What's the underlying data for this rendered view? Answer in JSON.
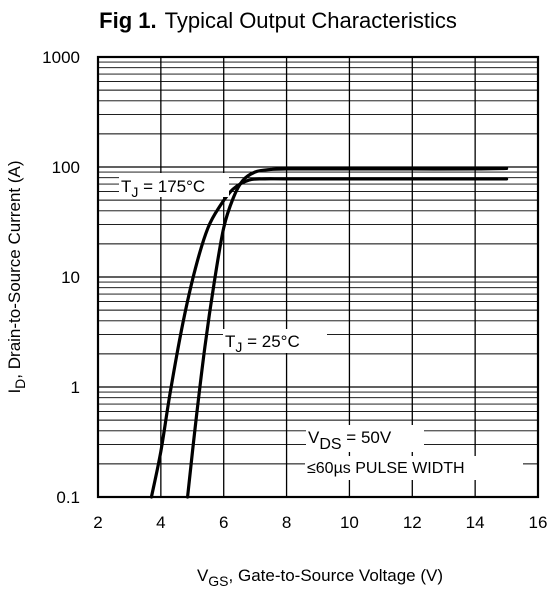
{
  "chart_data": {
    "type": "line",
    "title_prefix": "Fig 1.",
    "title": "Typical Output Characteristics",
    "xlabel": {
      "main": "V",
      "sub": "GS",
      "rest": ", Gate-to-Source Voltage (V)"
    },
    "ylabel": {
      "main": "I",
      "sub": "D",
      "rest": ", Drain-to-Source Current  (A)"
    },
    "x_scale": "linear",
    "y_scale": "log",
    "xlim": [
      2,
      16
    ],
    "ylim": [
      0.1,
      1000
    ],
    "x_ticks": [
      "2",
      "4",
      "6",
      "8",
      "10",
      "12",
      "14",
      "16"
    ],
    "y_ticks": [
      "0.1",
      "1",
      "10",
      "100",
      "1000"
    ],
    "grid": true,
    "series": [
      {
        "name": "TJ = 175°C",
        "label_main": "T",
        "label_sub": "J",
        "label_rest": " = 175°C",
        "x": [
          3.7,
          4.0,
          4.3,
          4.7,
          5.1,
          5.5,
          5.9,
          6.3,
          6.8,
          7.3,
          8.0,
          10.0,
          12.0,
          14.0,
          15.0
        ],
        "y": [
          0.1,
          0.26,
          0.9,
          3.8,
          12,
          28,
          45,
          63,
          76,
          78,
          78,
          78,
          78,
          78,
          78
        ]
      },
      {
        "name": "TJ = 25°C",
        "label_main": "T",
        "label_sub": "J",
        "label_rest": " = 25°C",
        "x": [
          4.85,
          5.1,
          5.4,
          5.7,
          6.0,
          6.3,
          6.6,
          7.0,
          7.5,
          8.0,
          10.0,
          12.0,
          14.0,
          15.0
        ],
        "y": [
          0.1,
          0.45,
          2.3,
          9,
          28,
          52,
          75,
          90,
          95,
          96,
          96,
          96,
          96,
          97
        ]
      }
    ],
    "annotations": {
      "vds_main": "V",
      "vds_sub": "DS",
      "vds_rest": " = 50V",
      "pulse": "≤60µs PULSE WIDTH"
    }
  }
}
